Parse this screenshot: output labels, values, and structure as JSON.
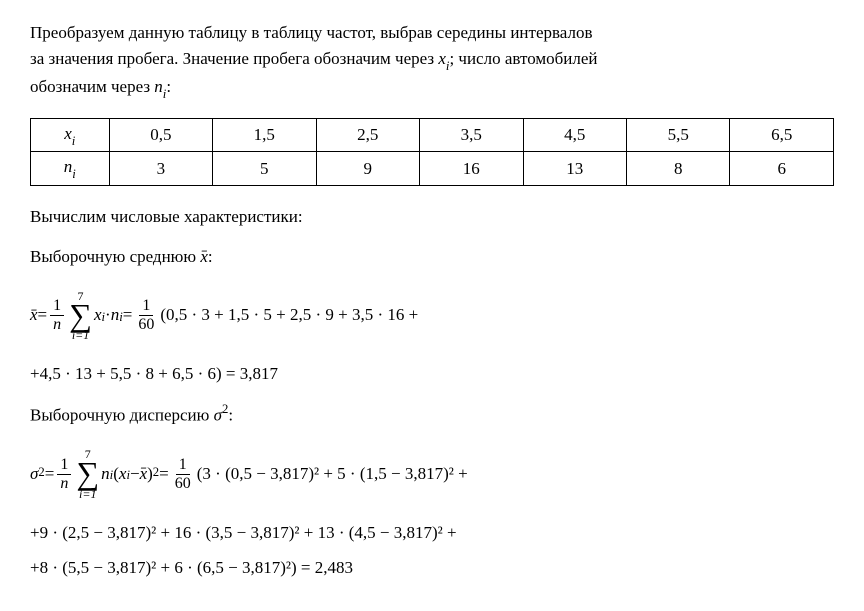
{
  "intro": {
    "line1_part1": "Преобразуем данную таблицу в таблицу частот, выбрав середины интервалов",
    "line2_part1": "за значения пробега. Значение пробега обозначим через ",
    "line2_xi": "x",
    "line2_sub_i": "i",
    "line2_part2": "; число автомобилей",
    "line3_part1": "обозначим через ",
    "line3_ni": "n",
    "line3_sub_i": "i",
    "line3_colon": ":"
  },
  "table": {
    "row1_header": "xᵢ",
    "row2_header": "nᵢ",
    "xi": [
      "0,5",
      "1,5",
      "2,5",
      "3,5",
      "4,5",
      "5,5",
      "6,5"
    ],
    "ni": [
      "3",
      "5",
      "9",
      "16",
      "13",
      "8",
      "6"
    ]
  },
  "section1": "Вычислим числовые характеристики:",
  "section2_part1": "Выборочную среднюю ",
  "section2_colon": ":",
  "formula1": {
    "lhs_xbar": "x",
    "equals": " = ",
    "frac1_num": "1",
    "frac1_den": "n",
    "sigma_top": "7",
    "sigma_bot": "i=1",
    "mid1": " x",
    "sub_i1": "i",
    "dot1": " · ",
    "ni": "n",
    "sub_i2": "i",
    "equals2": " = ",
    "frac2_num": "1",
    "frac2_den": "60",
    "expr1": " (0,5 · 3 + 1,5 · 5 + 2,5 · 9 + 3,5 · 16 +",
    "line2": "+4,5 · 13 + 5,5 · 8 + 6,5 · 6) = 3,817"
  },
  "section3_part1": "Выборочную дисперсию ",
  "section3_sigma": "σ",
  "section3_sup": "2",
  "section3_colon": ":",
  "formula2": {
    "sigma": "σ",
    "sup": "2",
    "equals": " = ",
    "frac1_num": "1",
    "frac1_den": "n",
    "sigma_top": "7",
    "sigma_bot": "i=1",
    "ni": " n",
    "sub_i": "i",
    "paren_open": "(",
    "xi": "x",
    "sub_i2": "i",
    "minus": " − ",
    "xbar": "x",
    "paren_close_sq": ")",
    "sup2": "2",
    "equals2": " = ",
    "frac2_num": "1",
    "frac2_den": "60",
    "expr_line1": " (3 · (0,5 − 3,817)² + 5 · (1,5 − 3,817)² +",
    "expr_line2": "+9 · (2,5 − 3,817)² + 16 · (3,5 − 3,817)² + 13 · (4,5 − 3,817)² +",
    "expr_line3": "+8 · (5,5 − 3,817)² + 6 · (6,5 − 3,817)²) = 2,483"
  }
}
